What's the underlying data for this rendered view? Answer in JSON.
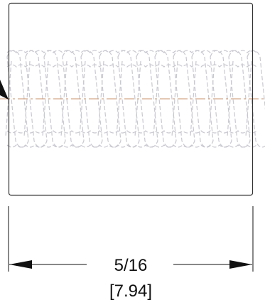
{
  "dimension": {
    "fraction": "5/16",
    "metric": "[7.94]"
  },
  "colors": {
    "outline": "#333333",
    "thread": "#c8c8d0",
    "centerline": "#c8906a",
    "dimension": "#111111"
  }
}
